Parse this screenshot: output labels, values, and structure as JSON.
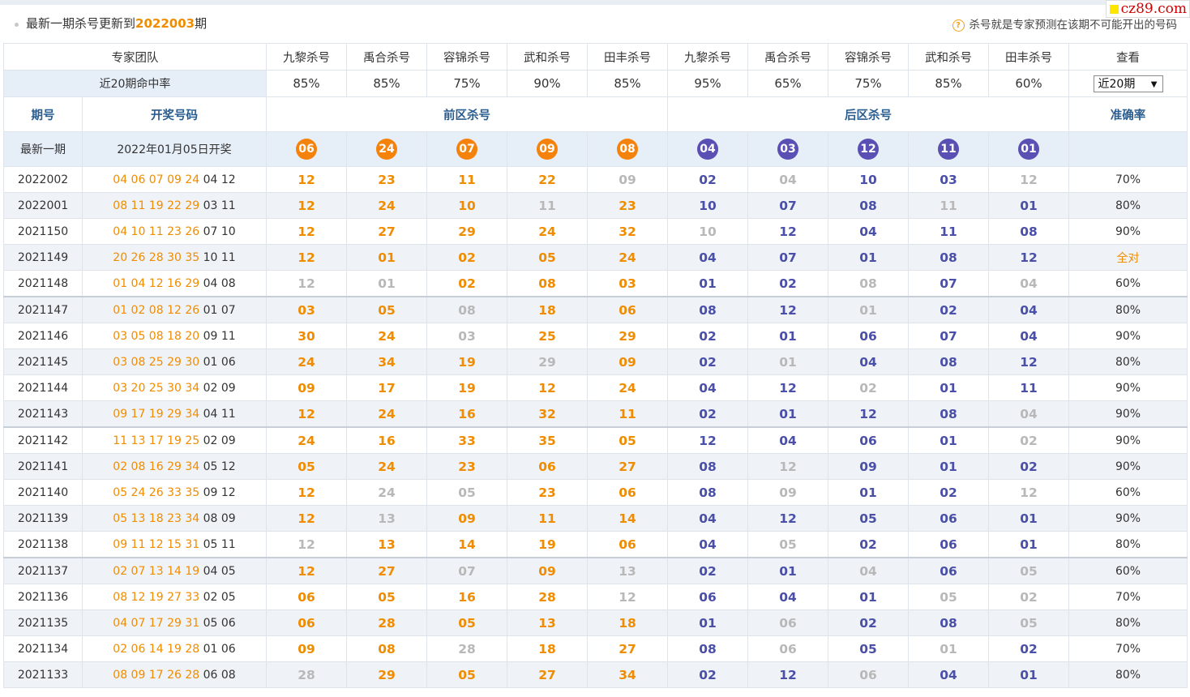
{
  "header": {
    "notice_prefix": "最新一期杀号更新到",
    "notice_issue": "2022003",
    "notice_suffix": "期",
    "tip_icon": "?",
    "tip_text": "杀号就是专家预测在该期不可能开出的号码",
    "logo_text": "cz89.com"
  },
  "experts": {
    "team_label": "专家团队",
    "names": [
      "九黎杀号",
      "禹合杀号",
      "容锦杀号",
      "武和杀号",
      "田丰杀号",
      "九黎杀号",
      "禹合杀号",
      "容锦杀号",
      "武和杀号",
      "田丰杀号"
    ],
    "view_label": "查看",
    "rate_label": "近20期命中率",
    "rates": [
      "85%",
      "85%",
      "75%",
      "90%",
      "85%",
      "95%",
      "65%",
      "75%",
      "85%",
      "60%"
    ],
    "period_select": "近20期",
    "period_select_arrow": "▼"
  },
  "columns": {
    "issue": "期号",
    "numbers": "开奖号码",
    "front": "前区杀号",
    "back": "后区杀号",
    "accuracy": "准确率"
  },
  "latest": {
    "label": "最新一期",
    "draw_date": "2022年01月05日开奖",
    "front_kills": [
      "06",
      "24",
      "07",
      "09",
      "08"
    ],
    "back_kills": [
      "04",
      "03",
      "12",
      "11",
      "01"
    ]
  },
  "colors": {
    "front": "#f5820b",
    "back": "#5a4fb3",
    "miss": "#b8b8b8"
  },
  "rows": [
    {
      "issue": "2022002",
      "front": "04 06 07 09 24",
      "back": "04 12",
      "fk": [
        "12",
        "23",
        "11",
        "22",
        "09"
      ],
      "fm": [
        1,
        1,
        1,
        1,
        0
      ],
      "bk": [
        "02",
        "04",
        "10",
        "03",
        "12"
      ],
      "bm": [
        1,
        0,
        1,
        1,
        0
      ],
      "acc": "70%"
    },
    {
      "issue": "2022001",
      "front": "08 11 19 22 29",
      "back": "03 11",
      "fk": [
        "12",
        "24",
        "10",
        "11",
        "23"
      ],
      "fm": [
        1,
        1,
        1,
        0,
        1
      ],
      "bk": [
        "10",
        "07",
        "08",
        "11",
        "01"
      ],
      "bm": [
        1,
        1,
        1,
        0,
        1
      ],
      "acc": "80%"
    },
    {
      "issue": "2021150",
      "front": "04 10 11 23 26",
      "back": "07 10",
      "fk": [
        "12",
        "27",
        "29",
        "24",
        "32"
      ],
      "fm": [
        1,
        1,
        1,
        1,
        1
      ],
      "bk": [
        "10",
        "12",
        "04",
        "11",
        "08"
      ],
      "bm": [
        0,
        1,
        1,
        1,
        1
      ],
      "acc": "90%"
    },
    {
      "issue": "2021149",
      "front": "20 26 28 30 35",
      "back": "10 11",
      "fk": [
        "12",
        "01",
        "02",
        "05",
        "24"
      ],
      "fm": [
        1,
        1,
        1,
        1,
        1
      ],
      "bk": [
        "04",
        "07",
        "01",
        "08",
        "12"
      ],
      "bm": [
        1,
        1,
        1,
        1,
        1
      ],
      "acc": "全对"
    },
    {
      "issue": "2021148",
      "front": "01 04 12 16 29",
      "back": "04 08",
      "fk": [
        "12",
        "01",
        "02",
        "08",
        "03"
      ],
      "fm": [
        0,
        0,
        1,
        1,
        1
      ],
      "bk": [
        "01",
        "02",
        "08",
        "07",
        "04"
      ],
      "bm": [
        1,
        1,
        0,
        1,
        0
      ],
      "acc": "60%"
    },
    {
      "issue": "2021147",
      "front": "01 02 08 12 26",
      "back": "01 07",
      "fk": [
        "03",
        "05",
        "08",
        "18",
        "06"
      ],
      "fm": [
        1,
        1,
        0,
        1,
        1
      ],
      "bk": [
        "08",
        "12",
        "01",
        "02",
        "04"
      ],
      "bm": [
        1,
        1,
        0,
        1,
        1
      ],
      "acc": "80%"
    },
    {
      "issue": "2021146",
      "front": "03 05 08 18 20",
      "back": "09 11",
      "fk": [
        "30",
        "24",
        "03",
        "25",
        "29"
      ],
      "fm": [
        1,
        1,
        0,
        1,
        1
      ],
      "bk": [
        "02",
        "01",
        "06",
        "07",
        "04"
      ],
      "bm": [
        1,
        1,
        1,
        1,
        1
      ],
      "acc": "90%"
    },
    {
      "issue": "2021145",
      "front": "03 08 25 29 30",
      "back": "01 06",
      "fk": [
        "24",
        "34",
        "19",
        "29",
        "09"
      ],
      "fm": [
        1,
        1,
        1,
        0,
        1
      ],
      "bk": [
        "02",
        "01",
        "04",
        "08",
        "12"
      ],
      "bm": [
        1,
        0,
        1,
        1,
        1
      ],
      "acc": "80%"
    },
    {
      "issue": "2021144",
      "front": "03 20 25 30 34",
      "back": "02 09",
      "fk": [
        "09",
        "17",
        "19",
        "12",
        "24"
      ],
      "fm": [
        1,
        1,
        1,
        1,
        1
      ],
      "bk": [
        "04",
        "12",
        "02",
        "01",
        "11"
      ],
      "bm": [
        1,
        1,
        0,
        1,
        1
      ],
      "acc": "90%"
    },
    {
      "issue": "2021143",
      "front": "09 17 19 29 34",
      "back": "04 11",
      "fk": [
        "12",
        "24",
        "16",
        "32",
        "11"
      ],
      "fm": [
        1,
        1,
        1,
        1,
        1
      ],
      "bk": [
        "02",
        "01",
        "12",
        "08",
        "04"
      ],
      "bm": [
        1,
        1,
        1,
        1,
        0
      ],
      "acc": "90%"
    },
    {
      "issue": "2021142",
      "front": "11 13 17 19 25",
      "back": "02 09",
      "fk": [
        "24",
        "16",
        "33",
        "35",
        "05"
      ],
      "fm": [
        1,
        1,
        1,
        1,
        1
      ],
      "bk": [
        "12",
        "04",
        "06",
        "01",
        "02"
      ],
      "bm": [
        1,
        1,
        1,
        1,
        0
      ],
      "acc": "90%"
    },
    {
      "issue": "2021141",
      "front": "02 08 16 29 34",
      "back": "05 12",
      "fk": [
        "05",
        "24",
        "23",
        "06",
        "27"
      ],
      "fm": [
        1,
        1,
        1,
        1,
        1
      ],
      "bk": [
        "08",
        "12",
        "09",
        "01",
        "02"
      ],
      "bm": [
        1,
        0,
        1,
        1,
        1
      ],
      "acc": "90%"
    },
    {
      "issue": "2021140",
      "front": "05 24 26 33 35",
      "back": "09 12",
      "fk": [
        "12",
        "24",
        "05",
        "23",
        "06"
      ],
      "fm": [
        1,
        0,
        0,
        1,
        1
      ],
      "bk": [
        "08",
        "09",
        "01",
        "02",
        "12"
      ],
      "bm": [
        1,
        0,
        1,
        1,
        0
      ],
      "acc": "60%"
    },
    {
      "issue": "2021139",
      "front": "05 13 18 23 34",
      "back": "08 09",
      "fk": [
        "12",
        "13",
        "09",
        "11",
        "14"
      ],
      "fm": [
        1,
        0,
        1,
        1,
        1
      ],
      "bk": [
        "04",
        "12",
        "05",
        "06",
        "01"
      ],
      "bm": [
        1,
        1,
        1,
        1,
        1
      ],
      "acc": "90%"
    },
    {
      "issue": "2021138",
      "front": "09 11 12 15 31",
      "back": "05 11",
      "fk": [
        "12",
        "13",
        "14",
        "19",
        "06"
      ],
      "fm": [
        0,
        1,
        1,
        1,
        1
      ],
      "bk": [
        "04",
        "05",
        "02",
        "06",
        "01"
      ],
      "bm": [
        1,
        0,
        1,
        1,
        1
      ],
      "acc": "80%"
    },
    {
      "issue": "2021137",
      "front": "02 07 13 14 19",
      "back": "04 05",
      "fk": [
        "12",
        "27",
        "07",
        "09",
        "13"
      ],
      "fm": [
        1,
        1,
        0,
        1,
        0
      ],
      "bk": [
        "02",
        "01",
        "04",
        "06",
        "05"
      ],
      "bm": [
        1,
        1,
        0,
        1,
        0
      ],
      "acc": "60%"
    },
    {
      "issue": "2021136",
      "front": "08 12 19 27 33",
      "back": "02 05",
      "fk": [
        "06",
        "05",
        "16",
        "28",
        "12"
      ],
      "fm": [
        1,
        1,
        1,
        1,
        0
      ],
      "bk": [
        "06",
        "04",
        "01",
        "05",
        "02"
      ],
      "bm": [
        1,
        1,
        1,
        0,
        0
      ],
      "acc": "70%"
    },
    {
      "issue": "2021135",
      "front": "04 07 17 29 31",
      "back": "05 06",
      "fk": [
        "06",
        "28",
        "05",
        "13",
        "18"
      ],
      "fm": [
        1,
        1,
        1,
        1,
        1
      ],
      "bk": [
        "01",
        "06",
        "02",
        "08",
        "05"
      ],
      "bm": [
        1,
        0,
        1,
        1,
        0
      ],
      "acc": "80%"
    },
    {
      "issue": "2021134",
      "front": "02 06 14 19 28",
      "back": "01 06",
      "fk": [
        "09",
        "08",
        "28",
        "18",
        "27"
      ],
      "fm": [
        1,
        1,
        0,
        1,
        1
      ],
      "bk": [
        "08",
        "06",
        "05",
        "01",
        "02"
      ],
      "bm": [
        1,
        0,
        1,
        0,
        1
      ],
      "acc": "70%"
    },
    {
      "issue": "2021133",
      "front": "08 09 17 26 28",
      "back": "06 08",
      "fk": [
        "28",
        "29",
        "05",
        "27",
        "34"
      ],
      "fm": [
        0,
        1,
        1,
        1,
        1
      ],
      "bk": [
        "02",
        "12",
        "06",
        "04",
        "01"
      ],
      "bm": [
        1,
        1,
        0,
        1,
        1
      ],
      "acc": "80%"
    }
  ]
}
